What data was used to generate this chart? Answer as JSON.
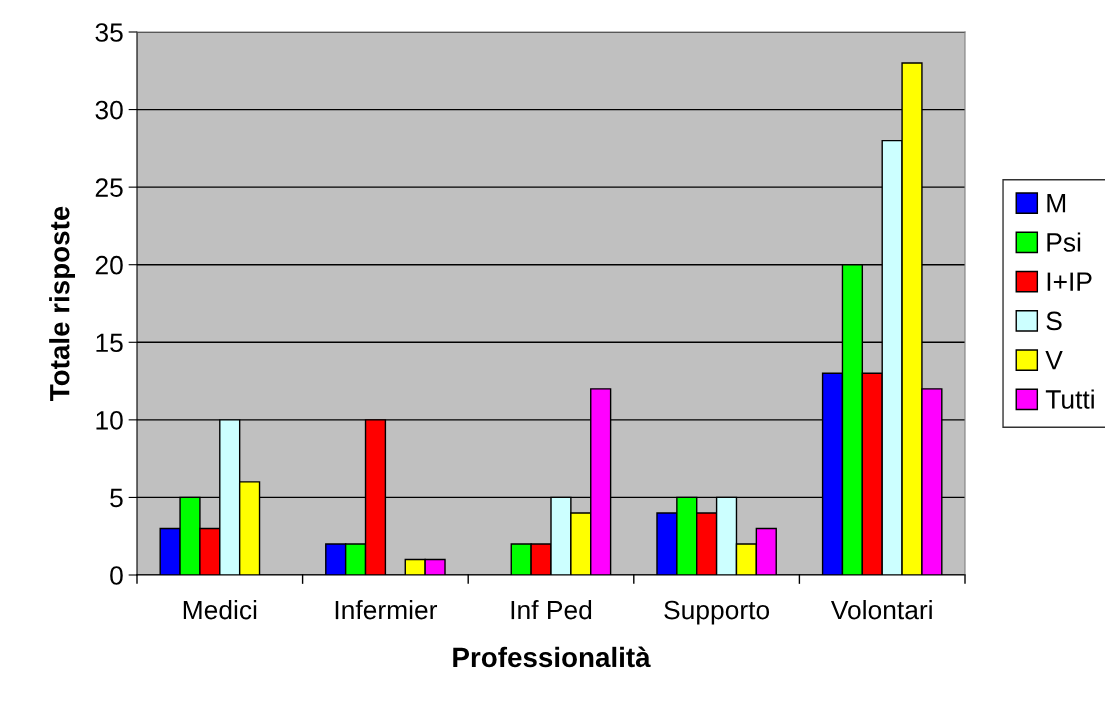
{
  "chart_data": {
    "type": "bar",
    "xlabel": "Professionalità",
    "ylabel": "Totale risposte",
    "categories": [
      "Medici",
      "Infermier",
      "Inf Ped",
      "Supporto",
      "Volontari"
    ],
    "series": [
      {
        "name": "M",
        "color": "#0000ff",
        "values": [
          3,
          2,
          null,
          4,
          13
        ]
      },
      {
        "name": "Psi",
        "color": "#00ff00",
        "values": [
          5,
          2,
          2,
          5,
          20
        ]
      },
      {
        "name": "I+IP",
        "color": "#ff0000",
        "values": [
          3,
          10,
          2,
          4,
          13
        ]
      },
      {
        "name": "S",
        "color": "#ccffff",
        "values": [
          10,
          null,
          5,
          5,
          28
        ]
      },
      {
        "name": "V",
        "color": "#ffff00",
        "values": [
          6,
          1,
          4,
          2,
          33
        ]
      },
      {
        "name": "Tutti",
        "color": "#ff00ff",
        "values": [
          null,
          1,
          12,
          3,
          12
        ]
      }
    ],
    "ylim": [
      0,
      35
    ],
    "yticks": [
      0,
      5,
      10,
      15,
      20,
      25,
      30,
      35
    ],
    "grid": "y",
    "legend": "right"
  }
}
